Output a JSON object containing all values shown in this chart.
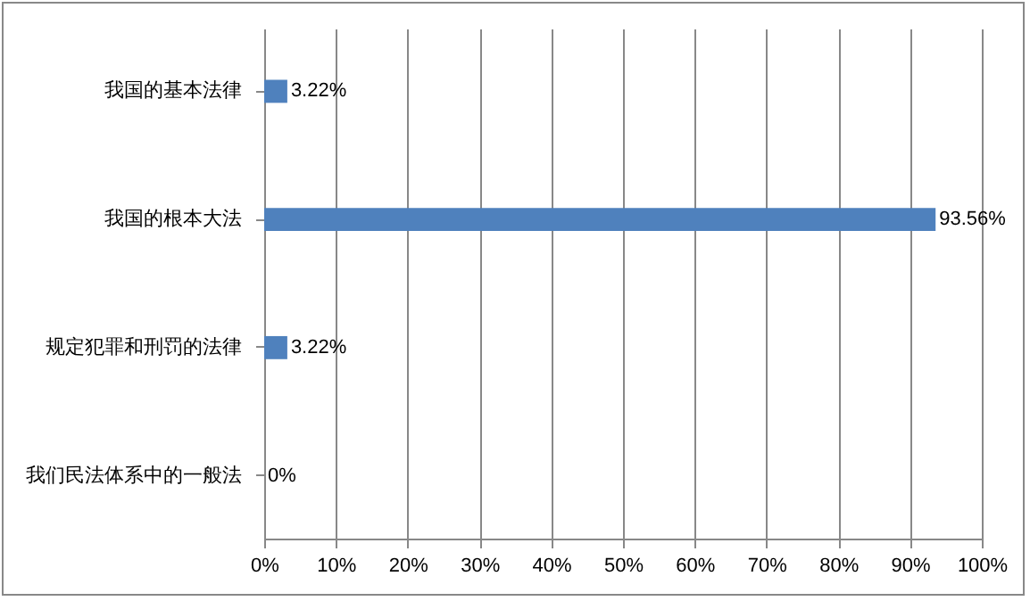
{
  "chart_data": {
    "type": "bar",
    "orientation": "horizontal",
    "categories": [
      "我国的基本法律",
      "我国的根本大法",
      "规定犯罪和刑罚的法律",
      "我们民法体系中的一般法"
    ],
    "values": [
      3.22,
      93.56,
      3.22,
      0
    ],
    "value_labels": [
      "3.22%",
      "93.56%",
      "3.22%",
      "0%"
    ],
    "color": "#4f81bd",
    "xlim": [
      0,
      100
    ],
    "xticks": [
      {
        "value": 0,
        "label": "0%"
      },
      {
        "value": 10,
        "label": "10%"
      },
      {
        "value": 20,
        "label": "20%"
      },
      {
        "value": 30,
        "label": "30%"
      },
      {
        "value": 40,
        "label": "40%"
      },
      {
        "value": 50,
        "label": "50%"
      },
      {
        "value": 60,
        "label": "60%"
      },
      {
        "value": 70,
        "label": "70%"
      },
      {
        "value": 80,
        "label": "80%"
      },
      {
        "value": 90,
        "label": "90%"
      },
      {
        "value": 100,
        "label": "100%"
      }
    ],
    "grid": "x"
  }
}
